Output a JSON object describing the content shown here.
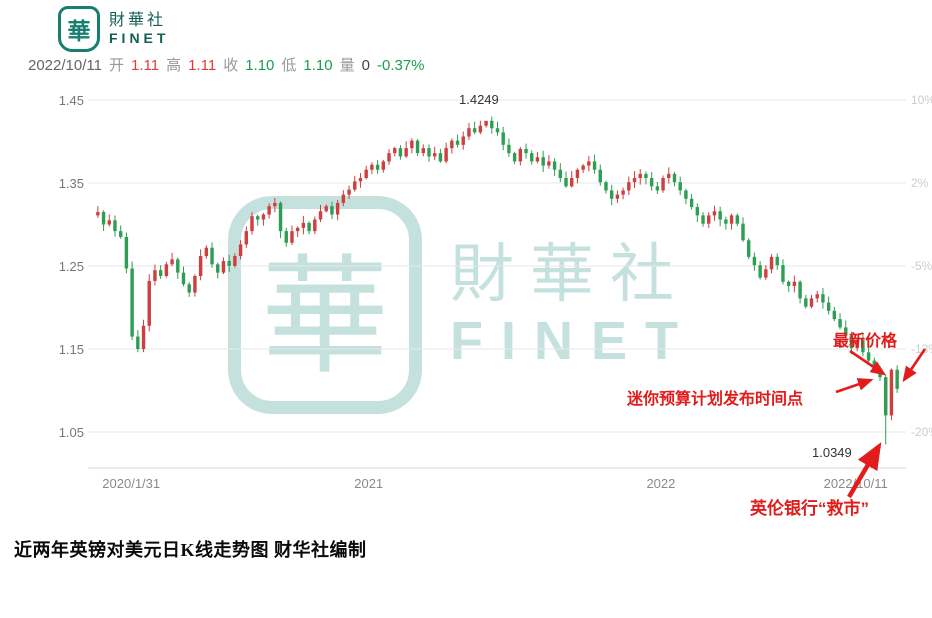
{
  "brand": {
    "logo_char": "華",
    "name_cn": "財華社",
    "name_en": "FINET"
  },
  "quote_bar": {
    "date": "2022/10/11",
    "fields": [
      {
        "label": "开",
        "value": "1.11",
        "color": "up"
      },
      {
        "label": "高",
        "value": "1.11",
        "color": "up"
      },
      {
        "label": "收",
        "value": "1.10",
        "color": "down"
      },
      {
        "label": "低",
        "value": "1.10",
        "color": "down"
      },
      {
        "label": "量",
        "value": "0",
        "color": "neutral"
      }
    ],
    "change": {
      "value": "-0.37%",
      "color": "down"
    }
  },
  "annotations": {
    "latest_price": "最新价格",
    "mini_budget": "迷你预算计划发布时间点",
    "boe_rescue": "英伦银行“救市”"
  },
  "caption": "近两年英镑对美元日K线走势图 财华社编制",
  "chart_data": {
    "type": "candlestick",
    "title": "近两年英镑对美元日K线走势图 财华社编制",
    "x_axis": {
      "labels": [
        {
          "text": "2020/1/31",
          "pos": 0.045
        },
        {
          "text": "2021",
          "pos": 0.34
        },
        {
          "text": "2022",
          "pos": 0.703
        },
        {
          "text": "2022/10/11",
          "pos": 0.945
        }
      ]
    },
    "y_axis_left": {
      "ticks": [
        1.45,
        1.35,
        1.25,
        1.15,
        1.05
      ],
      "range": [
        1.02,
        1.47
      ]
    },
    "y_axis_right": {
      "ticks": [
        "10%",
        "2%",
        "-5%",
        "-13%",
        "-20%"
      ]
    },
    "colors": {
      "up": "#cf3f3f",
      "down": "#2e9e54",
      "grid": "#e7e7e7",
      "axis_line": "#d9d9d9",
      "axis_label": "#777777",
      "right_label": "#cccccc",
      "x_label": "#8a8a8a"
    },
    "key_points": {
      "peak": {
        "index": 68,
        "value": 1.4249,
        "label": "1.4249"
      },
      "trough": {
        "index": 138,
        "value": 1.0349,
        "label": "1.0349"
      }
    },
    "series_closes": [
      1.315,
      1.3,
      1.305,
      1.292,
      1.285,
      1.247,
      1.165,
      1.15,
      1.178,
      1.232,
      1.245,
      1.238,
      1.252,
      1.258,
      1.242,
      1.228,
      1.218,
      1.238,
      1.262,
      1.272,
      1.252,
      1.242,
      1.256,
      1.25,
      1.262,
      1.276,
      1.292,
      1.31,
      1.306,
      1.312,
      1.322,
      1.326,
      1.292,
      1.278,
      1.292,
      1.296,
      1.302,
      1.292,
      1.306,
      1.316,
      1.322,
      1.312,
      1.326,
      1.336,
      1.342,
      1.352,
      1.356,
      1.366,
      1.372,
      1.366,
      1.376,
      1.386,
      1.392,
      1.382,
      1.392,
      1.401,
      1.386,
      1.392,
      1.382,
      1.386,
      1.376,
      1.392,
      1.401,
      1.396,
      1.406,
      1.416,
      1.411,
      1.419,
      1.4249,
      1.416,
      1.411,
      1.396,
      1.386,
      1.376,
      1.391,
      1.386,
      1.376,
      1.381,
      1.371,
      1.376,
      1.366,
      1.356,
      1.346,
      1.356,
      1.366,
      1.371,
      1.376,
      1.366,
      1.351,
      1.341,
      1.331,
      1.336,
      1.341,
      1.351,
      1.356,
      1.361,
      1.356,
      1.346,
      1.341,
      1.356,
      1.361,
      1.351,
      1.341,
      1.331,
      1.321,
      1.311,
      1.301,
      1.311,
      1.316,
      1.306,
      1.301,
      1.311,
      1.301,
      1.281,
      1.261,
      1.251,
      1.236,
      1.246,
      1.261,
      1.251,
      1.231,
      1.226,
      1.231,
      1.211,
      1.201,
      1.211,
      1.216,
      1.206,
      1.196,
      1.186,
      1.176,
      1.166,
      1.151,
      1.161,
      1.146,
      1.136,
      1.126,
      1.116,
      1.07,
      1.125,
      1.102
    ]
  }
}
